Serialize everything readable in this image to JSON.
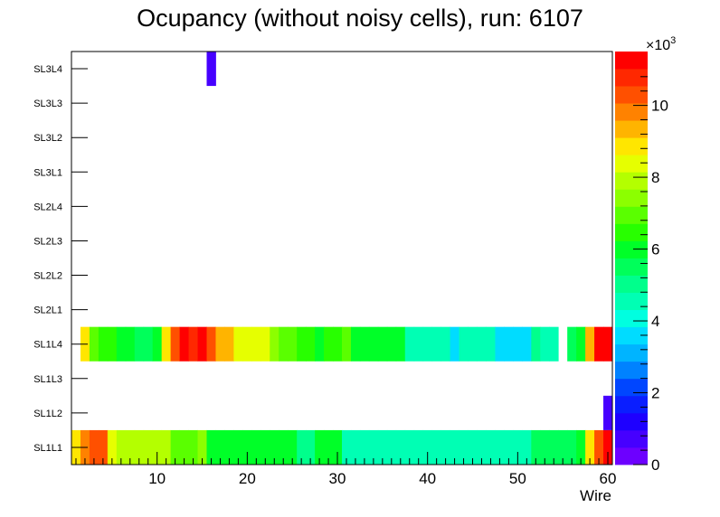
{
  "chart_data": {
    "type": "heatmap",
    "title": "Ocupancy (without noisy cells), run: 6107",
    "xlabel": "Wire",
    "ylabel": "",
    "xlim": [
      0.5,
      60.5
    ],
    "x_ticks": [
      "10",
      "20",
      "30",
      "40",
      "50",
      "60"
    ],
    "y_categories": [
      "SL1L1",
      "SL1L2",
      "SL1L3",
      "SL1L4",
      "SL2L1",
      "SL2L2",
      "SL2L3",
      "SL2L4",
      "SL3L1",
      "SL3L2",
      "SL3L3",
      "SL3L4"
    ],
    "zlim": [
      0,
      11500
    ],
    "z_multiplier_label": "×10",
    "z_multiplier_exponent": "3",
    "z_ticks": [
      "0",
      "2",
      "4",
      "6",
      "8",
      "10"
    ],
    "palette": [
      "#6d00ff",
      "#4600ff",
      "#1e00ff",
      "#0a1eff",
      "#0046ff",
      "#0082ff",
      "#00b4ff",
      "#00dcff",
      "#00ffe0",
      "#00ffb4",
      "#00ff8c",
      "#00ff5a",
      "#00ff28",
      "#28ff00",
      "#5aff00",
      "#8cff00",
      "#b4ff00",
      "#e6ff00",
      "#ffe600",
      "#ffb400",
      "#ff8200",
      "#ff5000",
      "#ff2800",
      "#ff0000"
    ],
    "cells": [
      {
        "row": "SL1L1",
        "values": [
          9000,
          9800,
          10400,
          10400,
          8200,
          7800,
          7800,
          7800,
          7800,
          7800,
          7800,
          6800,
          6800,
          6800,
          7200,
          6200,
          6200,
          6200,
          6200,
          6200,
          6200,
          6200,
          5800,
          5800,
          5800,
          5200,
          5200,
          5800,
          5800,
          5800,
          4600,
          4600,
          4600,
          4600,
          4600,
          4600,
          4600,
          4600,
          4600,
          4600,
          4600,
          4600,
          4600,
          4600,
          4600,
          4600,
          4600,
          4600,
          4600,
          4600,
          4600,
          5400,
          5400,
          5400,
          5400,
          5400,
          6200,
          8800,
          10400,
          11400
        ]
      },
      {
        "row": "SL1L2",
        "values": [
          null,
          null,
          null,
          null,
          null,
          null,
          null,
          null,
          null,
          null,
          null,
          null,
          null,
          null,
          null,
          null,
          null,
          null,
          null,
          null,
          null,
          null,
          null,
          null,
          null,
          null,
          null,
          null,
          null,
          null,
          null,
          null,
          null,
          null,
          null,
          null,
          null,
          null,
          null,
          null,
          null,
          null,
          null,
          null,
          null,
          null,
          null,
          null,
          null,
          null,
          null,
          null,
          null,
          null,
          null,
          null,
          null,
          null,
          null,
          700
        ]
      },
      {
        "row": "SL1L4",
        "values": [
          null,
          8800,
          7000,
          6600,
          6600,
          6000,
          6000,
          5400,
          5400,
          6000,
          8800,
          10400,
          11400,
          11000,
          11400,
          10400,
          9400,
          9400,
          8200,
          8200,
          8200,
          8200,
          7600,
          7000,
          7000,
          6600,
          6600,
          6000,
          6600,
          6600,
          7000,
          6000,
          6000,
          6000,
          6000,
          6000,
          6000,
          4400,
          4400,
          4400,
          4400,
          4400,
          3800,
          4400,
          4400,
          4400,
          4400,
          3800,
          3800,
          3800,
          3800,
          4800,
          4400,
          4400,
          null,
          5400,
          6000,
          9400,
          11400,
          11400
        ]
      },
      {
        "row": "SL3L4",
        "values": [
          null,
          null,
          null,
          null,
          null,
          null,
          null,
          null,
          null,
          null,
          null,
          null,
          null,
          null,
          null,
          700,
          null,
          null,
          null,
          null,
          null,
          null,
          null,
          null,
          null,
          null,
          null,
          null,
          null,
          null,
          null,
          null,
          null,
          null,
          null,
          null,
          null,
          null,
          null,
          null,
          null,
          null,
          null,
          null,
          null,
          null,
          null,
          null,
          null,
          null,
          null,
          null,
          null,
          null,
          null,
          null,
          null,
          null,
          null,
          null
        ]
      }
    ],
    "legend": "color bar on right"
  }
}
